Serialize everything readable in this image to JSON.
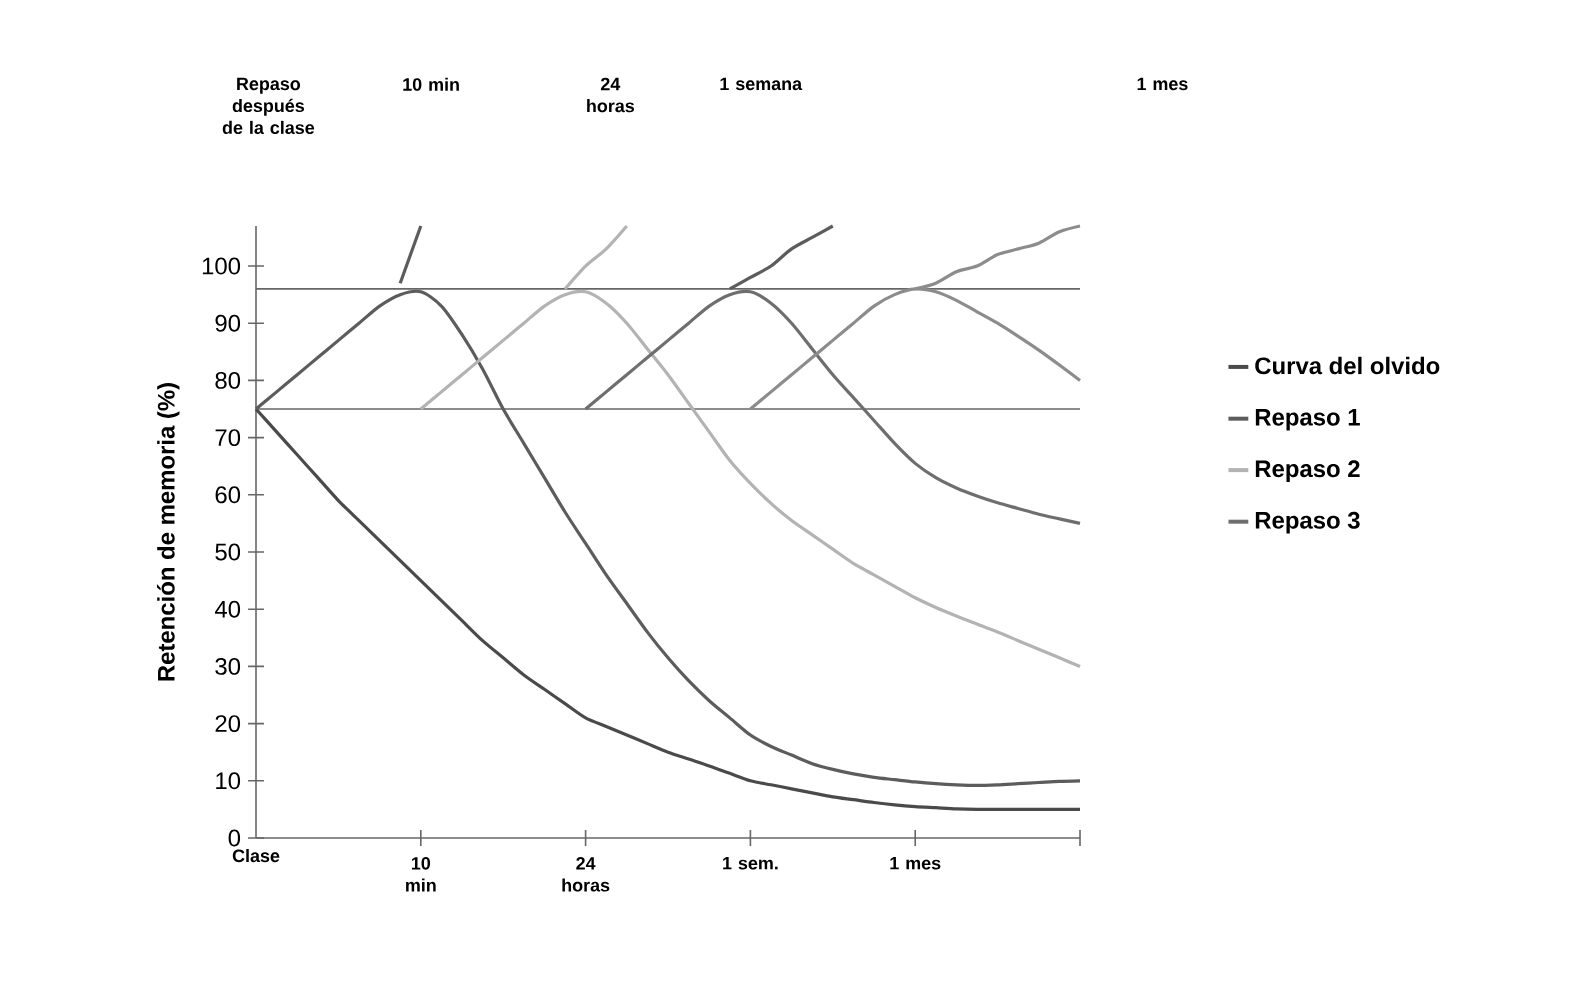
{
  "chart_data": {
    "type": "line",
    "ylabel": "Retención de memoria (%)",
    "annotations": [
      "Repaso después de la clase",
      "10 min",
      "24 horas",
      "1 semana",
      "1 mes"
    ],
    "categories": [
      "Clase",
      null,
      null,
      null,
      null,
      null,
      null,
      null,
      "10 min",
      null,
      null,
      null,
      null,
      null,
      null,
      null,
      "24 horas",
      null,
      null,
      null,
      null,
      null,
      null,
      null,
      "1 sem.",
      null,
      null,
      null,
      null,
      null,
      null,
      null,
      "1 mes",
      null,
      null,
      null,
      null,
      null,
      null,
      null,
      null
    ],
    "ylim": [
      0,
      107
    ],
    "yticks": [
      0,
      10,
      20,
      30,
      40,
      50,
      60,
      70,
      80,
      90,
      100
    ],
    "ref_lines": [
      {
        "axis": "y",
        "value": 96,
        "color": "#666666"
      },
      {
        "axis": "y",
        "value": 75,
        "color": "#666666"
      }
    ],
    "legend": "right",
    "marker": "none",
    "line_style": "solid",
    "series": [
      {
        "name": "Curva del olvido",
        "color": "#4a4a4a",
        "values": [
          75,
          71,
          67,
          63,
          59,
          55.5,
          52,
          48.5,
          45,
          41.5,
          38,
          34.5,
          31.5,
          28.5,
          26,
          23.5,
          21,
          19.5,
          18,
          16.5,
          15,
          13.8,
          12.6,
          11.3,
          10,
          9.3,
          8.6,
          7.9,
          7.2,
          6.7,
          6.2,
          5.8,
          5.5,
          5.3,
          5.1,
          5,
          5,
          5,
          5,
          5,
          5
        ]
      },
      {
        "name": "Repaso 1",
        "color": "#5c5c5c",
        "values": [
          75,
          78,
          81,
          84,
          87,
          90,
          93,
          95,
          95.5,
          93,
          88,
          82,
          75,
          69,
          63,
          57,
          51.5,
          46,
          41,
          36,
          31.5,
          27.5,
          24,
          21,
          18,
          16,
          14.5,
          13,
          12,
          11.2,
          10.6,
          10.2,
          9.8,
          9.5,
          9.3,
          9.2,
          9.3,
          9.5,
          9.7,
          9.9,
          10
        ]
      },
      {
        "name": "Repaso 2",
        "color": "#b3b3b3",
        "values": [
          null,
          null,
          null,
          null,
          null,
          null,
          null,
          null,
          75,
          78,
          81,
          84,
          87,
          90,
          93,
          95,
          95.5,
          93.5,
          90,
          85.5,
          81,
          76,
          71,
          66,
          62,
          58.5,
          55.5,
          53,
          50.5,
          48,
          46,
          44,
          42,
          40.3,
          38.8,
          37.4,
          36,
          34.5,
          33,
          31.5,
          30
        ]
      },
      {
        "name": "Repaso 3",
        "color": "#6e6e6e",
        "values": [
          null,
          null,
          null,
          null,
          null,
          null,
          null,
          null,
          null,
          null,
          null,
          null,
          null,
          null,
          null,
          null,
          75,
          78,
          81,
          84,
          87,
          90,
          93,
          95,
          95.5,
          93.5,
          90,
          85.5,
          81,
          77,
          73,
          69,
          65.5,
          63,
          61.2,
          59.8,
          58.6,
          57.6,
          56.6,
          55.8,
          55
        ]
      },
      {
        "color": "#8c8c8c",
        "values": [
          null,
          null,
          null,
          null,
          null,
          null,
          null,
          null,
          null,
          null,
          null,
          null,
          null,
          null,
          null,
          null,
          null,
          null,
          null,
          null,
          null,
          null,
          null,
          null,
          75,
          78,
          81,
          84,
          87,
          90,
          93,
          95,
          96,
          95.5,
          94,
          92,
          90,
          87.7,
          85.3,
          82.7,
          80
        ]
      },
      {
        "color": "#5c5c5c",
        "values": [
          null,
          null,
          null,
          null,
          null,
          null,
          null,
          97,
          107,
          null,
          null,
          null,
          null,
          null,
          null,
          null,
          null,
          null,
          null,
          null,
          null,
          null,
          null,
          null,
          null,
          null,
          null,
          null,
          null,
          null,
          null,
          null,
          null,
          null,
          null,
          null,
          null,
          null,
          null,
          null,
          null
        ]
      },
      {
        "color": "#b3b3b3",
        "values": [
          null,
          null,
          null,
          null,
          null,
          null,
          null,
          null,
          null,
          null,
          null,
          null,
          null,
          null,
          null,
          96,
          100,
          103,
          107,
          null,
          null,
          null,
          null,
          null,
          null,
          null,
          null,
          null,
          null,
          null,
          null,
          null,
          null,
          null,
          null,
          null,
          null,
          null,
          null,
          null,
          null
        ]
      },
      {
        "color": "#5c5c5c",
        "values": [
          null,
          null,
          null,
          null,
          null,
          null,
          null,
          null,
          null,
          null,
          null,
          null,
          null,
          null,
          null,
          null,
          null,
          null,
          null,
          null,
          null,
          null,
          null,
          96,
          98,
          100,
          103,
          105,
          107,
          null,
          null,
          null,
          null,
          null,
          null,
          null,
          null,
          null,
          null,
          null,
          null
        ]
      },
      {
        "color": "#8c8c8c",
        "values": [
          null,
          null,
          null,
          null,
          null,
          null,
          null,
          null,
          null,
          null,
          null,
          null,
          null,
          null,
          null,
          null,
          null,
          null,
          null,
          null,
          null,
          null,
          null,
          null,
          null,
          null,
          null,
          null,
          null,
          null,
          null,
          null,
          96,
          97,
          99,
          100,
          102,
          103,
          104,
          106,
          107
        ]
      }
    ]
  }
}
